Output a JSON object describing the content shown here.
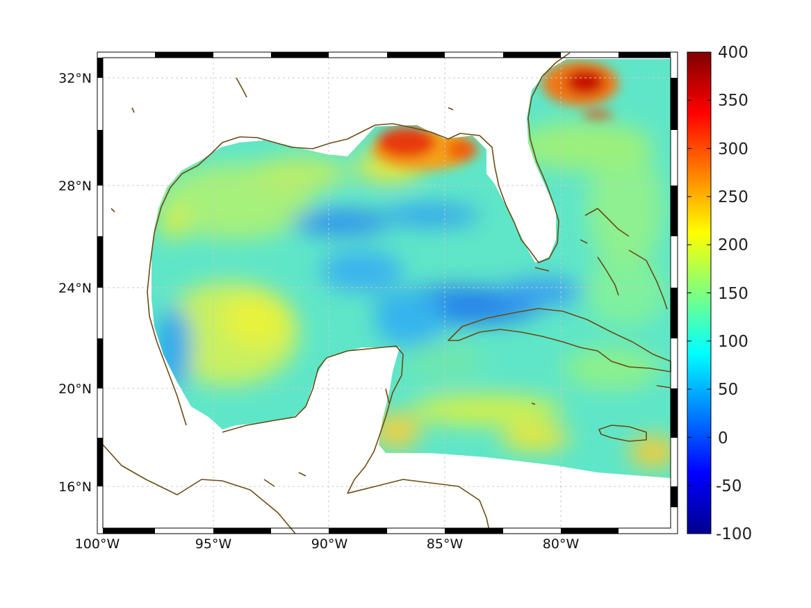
{
  "map": {
    "x_tick_labels": [
      "100°W",
      "95°W",
      "90°W",
      "85°W",
      "80°W"
    ],
    "y_tick_labels": [
      "32°N",
      "28°N",
      "24°N",
      "20°N",
      "16°N"
    ],
    "lon_range": [
      -100,
      -75
    ],
    "lat_range": [
      14.3,
      33
    ],
    "grid": true
  },
  "colorbar": {
    "ticks": [
      "400",
      "350",
      "300",
      "250",
      "200",
      "150",
      "100",
      "50",
      "0",
      "-50",
      "-100"
    ],
    "range": [
      -100,
      400
    ],
    "colormap": "jet"
  },
  "colors": {
    "coastline": "#6b4a12",
    "grid": "#c8c8c8",
    "ocean_mean": "#5fe6c8",
    "warm_eddy": "#e03000"
  }
}
